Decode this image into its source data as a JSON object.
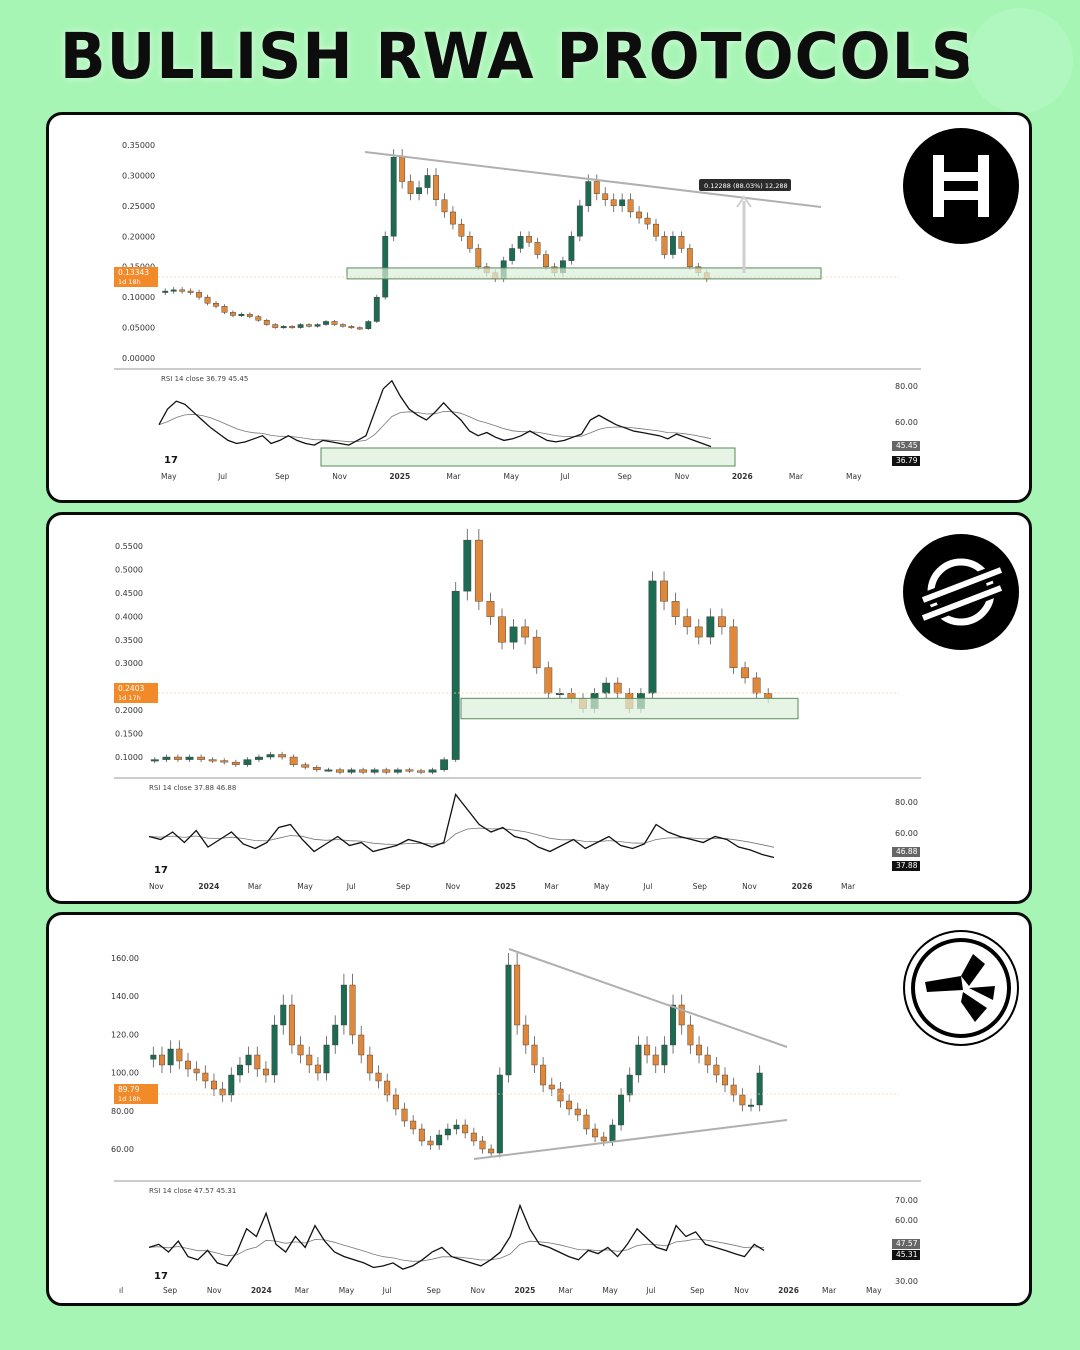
{
  "page": {
    "title": "BULLISH RWA PROTOCOLS",
    "colors": {
      "background": "#a6f5b4",
      "up": "#1e6b53",
      "down": "#e0883a",
      "zone_fill": "#dcefdc",
      "zone_stroke": "#5a8a5a",
      "trend": "#b0b0b0",
      "price_tag": "#f28a2a"
    }
  },
  "chart_data": [
    {
      "type": "candlestick",
      "asset_logo": "hbar-logo-icon",
      "y_ticks": [
        "0.35000",
        "0.30000",
        "0.25000",
        "0.20000",
        "0.15000",
        "0.10000",
        "0.05000",
        "0.00000"
      ],
      "ylim": [
        0,
        0.35
      ],
      "x_ticks": [
        "May",
        "Jul",
        "Sep",
        "Nov",
        "2025",
        "Mar",
        "May",
        "Jul",
        "Sep",
        "Nov",
        "2026",
        "Mar",
        "May"
      ],
      "price_tag": [
        "0.13343",
        "1d 18h"
      ],
      "measure_label": "0.12288 (88.03%) 12,288",
      "closes": [
        0.11,
        0.112,
        0.11,
        0.108,
        0.1,
        0.09,
        0.085,
        0.075,
        0.07,
        0.072,
        0.068,
        0.062,
        0.055,
        0.05,
        0.052,
        0.05,
        0.055,
        0.052,
        0.055,
        0.06,
        0.055,
        0.052,
        0.05,
        0.048,
        0.06,
        0.1,
        0.2,
        0.33,
        0.29,
        0.27,
        0.28,
        0.3,
        0.26,
        0.24,
        0.22,
        0.2,
        0.18,
        0.15,
        0.14,
        0.13,
        0.16,
        0.18,
        0.2,
        0.19,
        0.17,
        0.15,
        0.14,
        0.16,
        0.2,
        0.25,
        0.29,
        0.27,
        0.26,
        0.25,
        0.26,
        0.24,
        0.23,
        0.22,
        0.2,
        0.17,
        0.2,
        0.18,
        0.15,
        0.14,
        0.13
      ],
      "zone": [
        0.13,
        0.148
      ],
      "rsi": {
        "label": "RSI 14 close",
        "values": [
          "36.79",
          "45.45"
        ],
        "scale": [
          "80.00",
          "60.00"
        ],
        "tags": [
          "45.45",
          "36.79"
        ]
      }
    },
    {
      "type": "candlestick",
      "asset_logo": "xlm-logo-icon",
      "y_ticks": [
        "0.5500",
        "0.5000",
        "0.4500",
        "0.4000",
        "0.3500",
        "0.3000",
        "0.2500",
        "0.2000",
        "0.1500",
        "0.1000"
      ],
      "ylim": [
        0.08,
        0.56
      ],
      "x_ticks": [
        "Nov",
        "2024",
        "Mar",
        "May",
        "Jul",
        "Sep",
        "Nov",
        "2025",
        "Mar",
        "May",
        "Jul",
        "Sep",
        "Nov",
        "2026",
        "Mar"
      ],
      "price_tag": [
        "0.2403",
        "1d 17h"
      ],
      "closes": [
        0.12,
        0.125,
        0.12,
        0.125,
        0.12,
        0.118,
        0.115,
        0.11,
        0.12,
        0.125,
        0.13,
        0.125,
        0.11,
        0.105,
        0.1,
        0.1,
        0.095,
        0.1,
        0.095,
        0.1,
        0.095,
        0.1,
        0.098,
        0.095,
        0.1,
        0.12,
        0.45,
        0.55,
        0.43,
        0.4,
        0.35,
        0.38,
        0.36,
        0.3,
        0.25,
        0.25,
        0.24,
        0.22,
        0.25,
        0.27,
        0.25,
        0.22,
        0.25,
        0.47,
        0.43,
        0.4,
        0.38,
        0.36,
        0.4,
        0.38,
        0.3,
        0.28,
        0.25,
        0.24
      ],
      "zone": [
        0.2,
        0.24
      ],
      "rsi": {
        "label": "RSI 14 close",
        "values": [
          "37.88",
          "46.88"
        ],
        "scale": [
          "80.00",
          "60.00"
        ],
        "tags": [
          "46.88",
          "37.88"
        ]
      }
    },
    {
      "type": "candlestick",
      "asset_logo": "qnt-logo-icon",
      "y_ticks": [
        "160.00",
        "140.00",
        "120.00",
        "100.00",
        "80.00",
        "60.00"
      ],
      "ylim": [
        50,
        165
      ],
      "x_ticks": [
        "ıl",
        "Sep",
        "Nov",
        "2024",
        "Mar",
        "May",
        "Jul",
        "Sep",
        "Nov",
        "2025",
        "Mar",
        "May",
        "Jul",
        "Sep",
        "Nov",
        "2026",
        "Mar",
        "May"
      ],
      "price_tag": [
        "89.79",
        "1d 18h"
      ],
      "closes": [
        105,
        100,
        108,
        102,
        98,
        96,
        92,
        88,
        85,
        95,
        100,
        105,
        98,
        95,
        120,
        130,
        110,
        105,
        100,
        96,
        110,
        120,
        140,
        115,
        105,
        96,
        92,
        85,
        78,
        72,
        68,
        62,
        60,
        65,
        68,
        70,
        66,
        62,
        58,
        56,
        95,
        150,
        120,
        110,
        100,
        90,
        88,
        82,
        78,
        75,
        68,
        64,
        62,
        70,
        85,
        95,
        110,
        105,
        100,
        110,
        130,
        120,
        110,
        105,
        100,
        95,
        90,
        85,
        80,
        80,
        96
      ]
    },
    {
      "rsi": {
        "label": "RSI 14 close",
        "values": [
          "47.57",
          "45.31"
        ],
        "scale": [
          "70.00",
          "60.00",
          "30.00"
        ],
        "tags": [
          "47.57",
          "45.31"
        ]
      }
    }
  ]
}
